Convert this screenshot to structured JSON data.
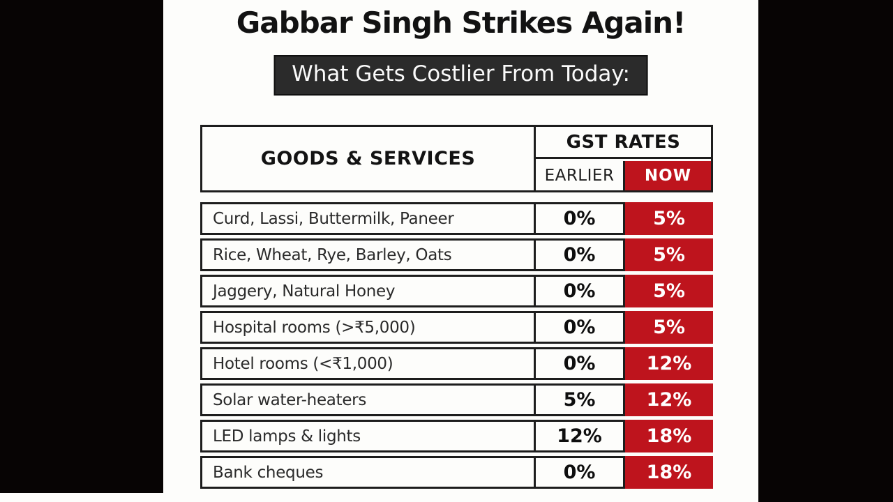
{
  "chart_data": {
    "type": "table",
    "title": "Gabbar Singh Strikes Again!",
    "subtitle": "What Gets Costlier From Today:",
    "column_group_header": "GST RATES",
    "columns": {
      "goods": "GOODS & SERVICES",
      "earlier": "EARLIER",
      "now": "NOW"
    },
    "rows": [
      {
        "item": "Curd, Lassi, Buttermilk, Paneer",
        "earlier": "0%",
        "now": "5%"
      },
      {
        "item": "Rice, Wheat, Rye, Barley, Oats",
        "earlier": "0%",
        "now": "5%"
      },
      {
        "item": "Jaggery, Natural Honey",
        "earlier": "0%",
        "now": "5%"
      },
      {
        "item": "Hospital rooms (>₹5,000)",
        "earlier": "0%",
        "now": "5%"
      },
      {
        "item": "Hotel rooms (<₹1,000)",
        "earlier": "0%",
        "now": "12%"
      },
      {
        "item": "Solar water-heaters",
        "earlier": "5%",
        "now": "12%"
      },
      {
        "item": "LED lamps & lights",
        "earlier": "12%",
        "now": "18%"
      },
      {
        "item": "Bank cheques",
        "earlier": "0%",
        "now": "18%"
      }
    ]
  },
  "colors": {
    "accent_red": "#BE141D",
    "banner_bg": "#2B2B2B",
    "border_dark": "#1D1D1D",
    "page_white": "#FDFDFB",
    "letterbox_black": "#070404"
  }
}
